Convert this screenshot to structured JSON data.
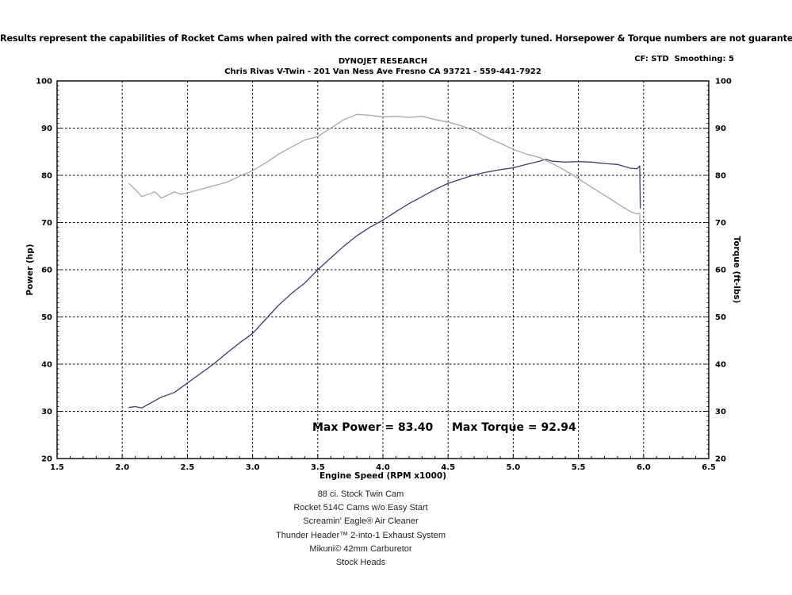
{
  "disclaimer": "Results represent the capabilities of Rocket Cams when paired with the correct components and properly tuned. Horsepower & Torque numbers are not guaranteed.",
  "header": {
    "company": "DYNOJET RESEARCH",
    "shop": "Chris Rivas V-Twin - 201 Van Ness Ave Fresno CA 93721 - 559-441-7922",
    "settings": "CF: STD  Smoothing: 5"
  },
  "max_power_label": "Max Power = 83.40",
  "max_torque_label": "Max Torque = 92.94",
  "notes": [
    "88 ci. Stock Twin Cam",
    "Rocket 514C Cams w/o Easy Start",
    "Screamin' Eagle® Air Cleaner",
    "Thunder Header™ 2-into-1 Exhaust System",
    "Mikuni© 42mm Carburetor",
    "Stock Heads"
  ],
  "chart_data": {
    "type": "line",
    "xlabel": "Engine Speed (RPM x1000)",
    "ylabel": "Power (hp)",
    "ylabel_right": "Torque (ft-lbs)",
    "xlim": [
      1.5,
      6.5
    ],
    "ylim": [
      20,
      100
    ],
    "ylim_right": [
      20,
      100
    ],
    "x_ticks": [
      "1.5",
      "2.0",
      "2.5",
      "3.0",
      "3.5",
      "4.0",
      "4.5",
      "5.0",
      "5.5",
      "6.0",
      "6.5"
    ],
    "y_ticks": [
      "20",
      "30",
      "40",
      "50",
      "60",
      "70",
      "80",
      "90",
      "100"
    ],
    "grid": true,
    "colors": {
      "power": "#3a3f66",
      "torque": "#a6a6a6"
    },
    "series": [
      {
        "id": "power",
        "x": [
          2.05,
          2.1,
          2.15,
          2.2,
          2.3,
          2.4,
          2.5,
          2.6,
          2.7,
          2.8,
          2.9,
          3.0,
          3.1,
          3.2,
          3.3,
          3.4,
          3.5,
          3.6,
          3.7,
          3.8,
          3.9,
          4.0,
          4.1,
          4.2,
          4.3,
          4.4,
          4.5,
          4.6,
          4.7,
          4.8,
          4.9,
          5.0,
          5.1,
          5.2,
          5.25,
          5.3,
          5.4,
          5.5,
          5.6,
          5.7,
          5.8,
          5.9,
          5.95,
          5.97,
          5.975
        ],
        "y": [
          30.8,
          31.0,
          30.7,
          31.5,
          33.0,
          34.0,
          36.0,
          38.0,
          40.0,
          42.3,
          44.5,
          46.5,
          49.5,
          52.5,
          55.0,
          57.2,
          60.0,
          62.5,
          65.0,
          67.2,
          69.0,
          70.5,
          72.3,
          74.0,
          75.5,
          77.0,
          78.3,
          79.2,
          80.1,
          80.7,
          81.2,
          81.6,
          82.3,
          83.0,
          83.4,
          83.0,
          82.8,
          82.9,
          82.8,
          82.5,
          82.3,
          81.5,
          81.4,
          82.0,
          73.0
        ]
      },
      {
        "id": "torque",
        "x": [
          2.05,
          2.1,
          2.15,
          2.2,
          2.25,
          2.3,
          2.35,
          2.4,
          2.45,
          2.5,
          2.6,
          2.7,
          2.8,
          2.9,
          3.0,
          3.1,
          3.2,
          3.3,
          3.4,
          3.5,
          3.6,
          3.7,
          3.8,
          3.9,
          4.0,
          4.1,
          4.2,
          4.3,
          4.4,
          4.5,
          4.6,
          4.7,
          4.8,
          4.9,
          5.0,
          5.1,
          5.2,
          5.3,
          5.4,
          5.5,
          5.6,
          5.7,
          5.8,
          5.9,
          5.95,
          5.97,
          5.975
        ],
        "y": [
          78.3,
          77.0,
          75.5,
          76.0,
          76.5,
          75.2,
          75.8,
          76.5,
          76.0,
          76.3,
          77.0,
          77.8,
          78.5,
          79.8,
          81.0,
          82.6,
          84.5,
          86.0,
          87.5,
          88.2,
          90.0,
          91.8,
          92.9,
          92.7,
          92.4,
          92.5,
          92.3,
          92.5,
          91.8,
          91.3,
          90.5,
          89.5,
          88.0,
          86.8,
          85.5,
          84.5,
          83.8,
          82.5,
          81.0,
          79.3,
          77.5,
          75.8,
          74.0,
          72.3,
          71.8,
          72.0,
          63.5
        ]
      }
    ]
  }
}
